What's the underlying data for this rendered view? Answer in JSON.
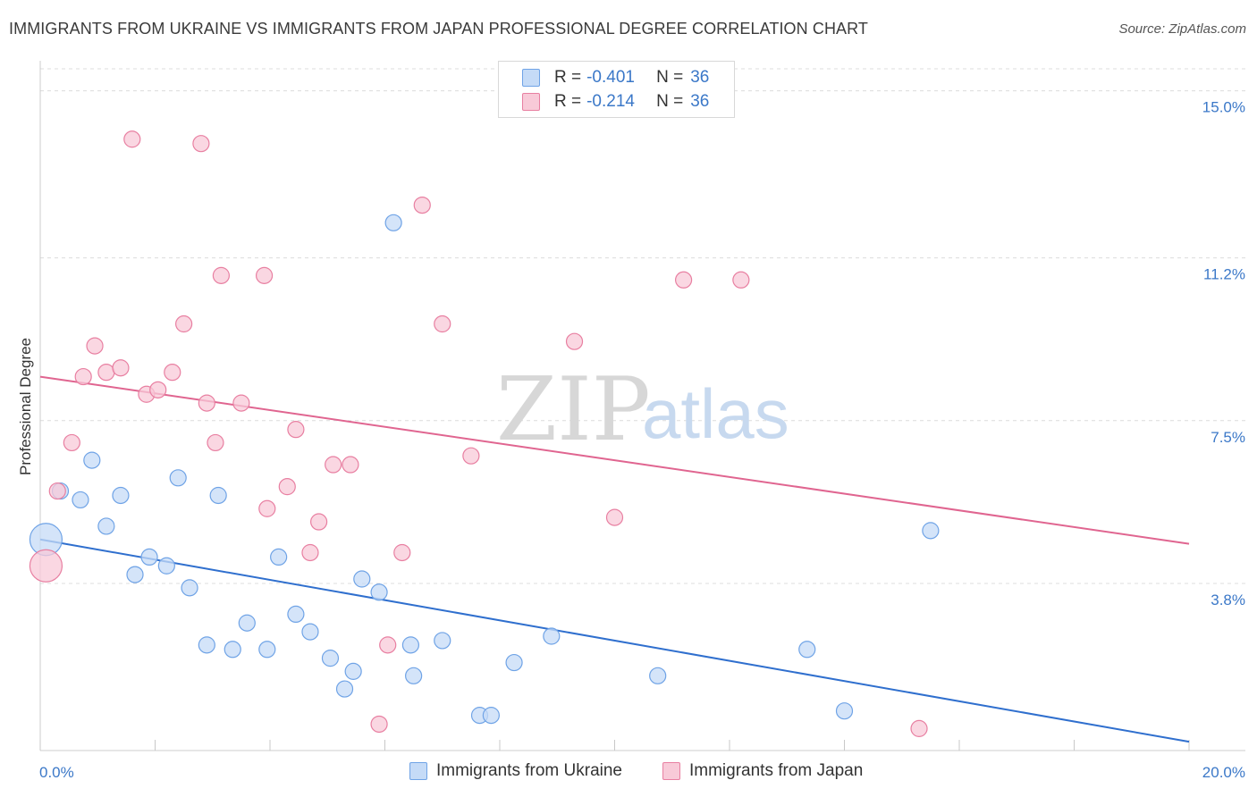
{
  "title": "IMMIGRANTS FROM UKRAINE VS IMMIGRANTS FROM JAPAN PROFESSIONAL DEGREE CORRELATION CHART",
  "source": "Source: ZipAtlas.com",
  "watermark": {
    "zip": "ZIP",
    "atlas": "atlas"
  },
  "colors": {
    "ukraine": "#6fa3e6",
    "ukraine_fill": "#c5dbf7",
    "japan": "#e87fa1",
    "japan_fill": "#f8cad8",
    "ukraine_line": "#2f6fce",
    "japan_line": "#e06590",
    "accent": "#3b78c8"
  },
  "legend_top": {
    "rows": [
      {
        "r_label": "R =",
        "r_value": "-0.401",
        "n_label": "N =",
        "n_value": "36"
      },
      {
        "r_label": "R =",
        "r_value": "-0.214",
        "n_label": "N =",
        "n_value": "36"
      }
    ]
  },
  "legend_bottom": {
    "ukraine": "Immigrants from Ukraine",
    "japan": "Immigrants from Japan"
  },
  "chart_data": {
    "type": "scatter",
    "title": "IMMIGRANTS FROM UKRAINE VS IMMIGRANTS FROM JAPAN PROFESSIONAL DEGREE CORRELATION CHART",
    "xlabel": "",
    "ylabel": "Professional Degree",
    "xlim": [
      0,
      20
    ],
    "ylim": [
      0,
      15.5
    ],
    "x_tick_labels": [
      "0.0%",
      "20.0%"
    ],
    "y_ticks": [
      3.8,
      7.5,
      11.2,
      15.0
    ],
    "y_tick_labels": [
      "3.8%",
      "7.5%",
      "11.2%",
      "15.0%"
    ],
    "series": [
      {
        "name": "Immigrants from Ukraine",
        "points": [
          {
            "x": 0.35,
            "y": 5.9
          },
          {
            "x": 0.7,
            "y": 5.7
          },
          {
            "x": 0.9,
            "y": 6.6
          },
          {
            "x": 1.15,
            "y": 5.1
          },
          {
            "x": 1.4,
            "y": 5.8
          },
          {
            "x": 1.65,
            "y": 4.0
          },
          {
            "x": 1.9,
            "y": 4.4
          },
          {
            "x": 2.2,
            "y": 4.2
          },
          {
            "x": 2.4,
            "y": 6.2
          },
          {
            "x": 2.6,
            "y": 3.7
          },
          {
            "x": 2.9,
            "y": 2.4
          },
          {
            "x": 3.1,
            "y": 5.8
          },
          {
            "x": 3.35,
            "y": 2.3
          },
          {
            "x": 3.6,
            "y": 2.9
          },
          {
            "x": 3.95,
            "y": 2.3
          },
          {
            "x": 4.15,
            "y": 4.4
          },
          {
            "x": 4.45,
            "y": 3.1
          },
          {
            "x": 4.7,
            "y": 2.7
          },
          {
            "x": 5.05,
            "y": 2.1
          },
          {
            "x": 5.3,
            "y": 1.4
          },
          {
            "x": 5.45,
            "y": 1.8
          },
          {
            "x": 5.6,
            "y": 3.9
          },
          {
            "x": 5.9,
            "y": 3.6
          },
          {
            "x": 6.15,
            "y": 12.0
          },
          {
            "x": 6.45,
            "y": 2.4
          },
          {
            "x": 6.5,
            "y": 1.7
          },
          {
            "x": 7.0,
            "y": 2.5
          },
          {
            "x": 7.65,
            "y": 0.8
          },
          {
            "x": 7.85,
            "y": 0.8
          },
          {
            "x": 8.25,
            "y": 2.0
          },
          {
            "x": 8.9,
            "y": 2.6
          },
          {
            "x": 10.75,
            "y": 1.7
          },
          {
            "x": 13.35,
            "y": 2.3
          },
          {
            "x": 14.0,
            "y": 0.9
          },
          {
            "x": 15.5,
            "y": 5.0
          },
          {
            "x": 0.1,
            "y": 4.8,
            "size": "large"
          }
        ],
        "trend": {
          "x": [
            0,
            20
          ],
          "y": [
            4.8,
            0.2
          ]
        }
      },
      {
        "name": "Immigrants from Japan",
        "points": [
          {
            "x": 0.3,
            "y": 5.9
          },
          {
            "x": 0.55,
            "y": 7.0
          },
          {
            "x": 0.75,
            "y": 8.5
          },
          {
            "x": 0.95,
            "y": 9.2
          },
          {
            "x": 1.15,
            "y": 8.6
          },
          {
            "x": 1.4,
            "y": 8.7
          },
          {
            "x": 1.6,
            "y": 13.9
          },
          {
            "x": 1.85,
            "y": 8.1
          },
          {
            "x": 2.05,
            "y": 8.2
          },
          {
            "x": 2.3,
            "y": 8.6
          },
          {
            "x": 2.5,
            "y": 9.7
          },
          {
            "x": 2.8,
            "y": 13.8
          },
          {
            "x": 2.9,
            "y": 7.9
          },
          {
            "x": 3.05,
            "y": 7.0
          },
          {
            "x": 3.15,
            "y": 10.8
          },
          {
            "x": 3.5,
            "y": 7.9
          },
          {
            "x": 3.9,
            "y": 10.8
          },
          {
            "x": 3.95,
            "y": 5.5
          },
          {
            "x": 4.3,
            "y": 6.0
          },
          {
            "x": 4.45,
            "y": 7.3
          },
          {
            "x": 4.7,
            "y": 4.5
          },
          {
            "x": 4.85,
            "y": 5.2
          },
          {
            "x": 5.1,
            "y": 6.5
          },
          {
            "x": 5.4,
            "y": 6.5
          },
          {
            "x": 5.9,
            "y": 0.6
          },
          {
            "x": 6.05,
            "y": 2.4
          },
          {
            "x": 6.3,
            "y": 4.5
          },
          {
            "x": 6.65,
            "y": 12.4
          },
          {
            "x": 7.0,
            "y": 9.7
          },
          {
            "x": 7.5,
            "y": 6.7
          },
          {
            "x": 9.3,
            "y": 9.3
          },
          {
            "x": 10.0,
            "y": 5.3
          },
          {
            "x": 11.2,
            "y": 10.7
          },
          {
            "x": 12.2,
            "y": 10.7
          },
          {
            "x": 15.3,
            "y": 0.5
          },
          {
            "x": 0.1,
            "y": 4.2,
            "size": "large"
          }
        ],
        "trend": {
          "x": [
            0,
            20
          ],
          "y": [
            8.5,
            4.7
          ]
        }
      }
    ]
  }
}
